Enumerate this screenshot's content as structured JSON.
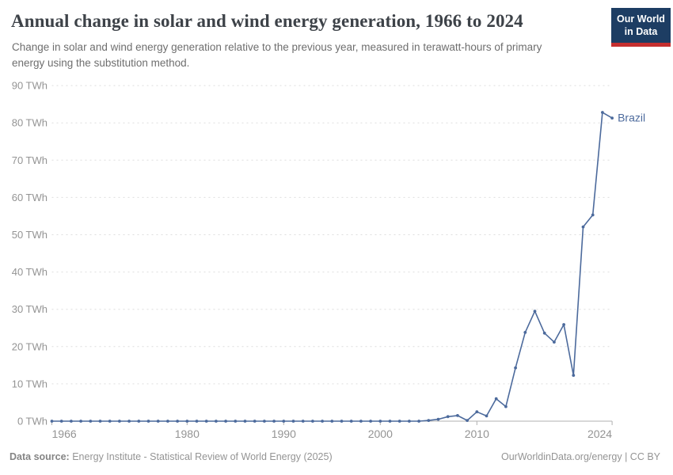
{
  "header": {
    "title": "Annual change in solar and wind energy generation, 1966 to 2024",
    "subtitle": "Change in solar and wind energy generation relative to the previous year, measured in terawatt-hours of primary energy using the substitution method.",
    "logo": {
      "line1": "Our World",
      "line2": "in Data"
    }
  },
  "footer": {
    "source_label": "Data source:",
    "source_text": "Energy Institute - Statistical Review of World Energy (2025)",
    "credit": "OurWorldinData.org/energy | CC BY"
  },
  "colors": {
    "series": "#4c6a9c",
    "grid": "#dedede",
    "axis": "#b0b0b0",
    "tick_label": "#949494",
    "entity_label": "#4c6a9c",
    "logo_bg": "#1d3d63",
    "logo_accent": "#c52f2f"
  },
  "chart_data": {
    "type": "line",
    "title": "Annual change in solar and wind energy generation, 1966 to 2024",
    "xlabel": "",
    "ylabel": "",
    "y_unit": " TWh",
    "xlim": [
      1966,
      2024
    ],
    "ylim": [
      0,
      90
    ],
    "grid": "horizontal-dashed",
    "legend_position": "end-of-line",
    "x_ticks": [
      1966,
      1980,
      1990,
      2000,
      2010,
      2024
    ],
    "y_ticks": [
      0,
      10,
      20,
      30,
      40,
      50,
      60,
      70,
      80,
      90
    ],
    "x": [
      1966,
      1967,
      1968,
      1969,
      1970,
      1971,
      1972,
      1973,
      1974,
      1975,
      1976,
      1977,
      1978,
      1979,
      1980,
      1981,
      1982,
      1983,
      1984,
      1985,
      1986,
      1987,
      1988,
      1989,
      1990,
      1991,
      1992,
      1993,
      1994,
      1995,
      1996,
      1997,
      1998,
      1999,
      2000,
      2001,
      2002,
      2003,
      2004,
      2005,
      2006,
      2007,
      2008,
      2009,
      2010,
      2011,
      2012,
      2013,
      2014,
      2015,
      2016,
      2017,
      2018,
      2019,
      2020,
      2021,
      2022,
      2023,
      2024
    ],
    "series": [
      {
        "name": "Brazil",
        "color": "#4c6a9c",
        "values": [
          0,
          0,
          0,
          0,
          0,
          0,
          0,
          0,
          0,
          0,
          0,
          0,
          0,
          0,
          0,
          0,
          0,
          0,
          0,
          0,
          0,
          0,
          0,
          0,
          0,
          0,
          0,
          0,
          0,
          0,
          0,
          0,
          0,
          0,
          0,
          0,
          0,
          0,
          0,
          0.2,
          0.5,
          1.2,
          1.5,
          0.2,
          2.5,
          1.4,
          6.0,
          3.9,
          14.3,
          23.8,
          29.5,
          23.6,
          21.2,
          25.9,
          12.3,
          52.1,
          55.3,
          82.8,
          81.3
        ]
      }
    ]
  }
}
